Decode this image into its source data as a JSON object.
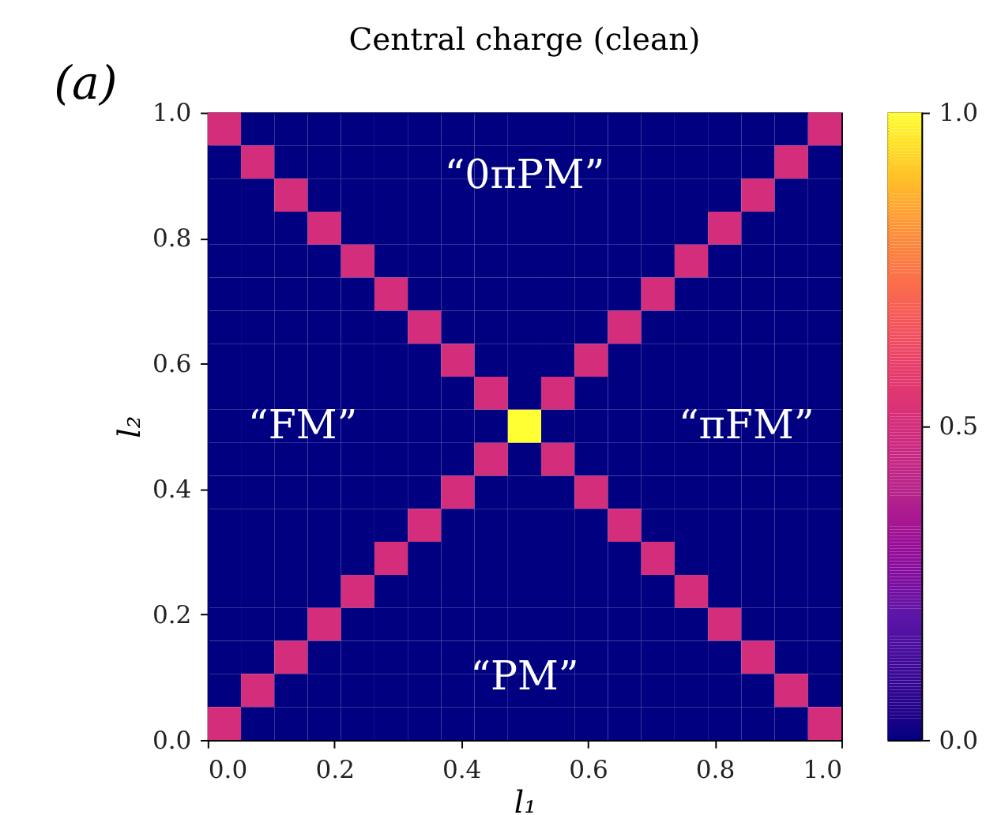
{
  "chart_data": {
    "type": "heatmap",
    "title": "Central charge (clean)",
    "xlabel": "l₁",
    "ylabel": "l₂",
    "x": [
      0.0263,
      0.0789,
      0.1316,
      0.1842,
      0.2368,
      0.2895,
      0.3421,
      0.3947,
      0.4474,
      0.5,
      0.5526,
      0.6053,
      0.6579,
      0.7105,
      0.7632,
      0.8158,
      0.8684,
      0.9211,
      0.9737
    ],
    "y": [
      0.9737,
      0.9211,
      0.8684,
      0.8158,
      0.7632,
      0.7105,
      0.6579,
      0.6053,
      0.5526,
      0.5,
      0.4474,
      0.3947,
      0.3421,
      0.2895,
      0.2368,
      0.1842,
      0.1316,
      0.0789,
      0.0263
    ],
    "cells": [
      [
        0.5,
        0,
        0,
        0,
        0,
        0,
        0,
        0,
        0,
        0,
        0,
        0,
        0,
        0,
        0,
        0,
        0,
        0,
        0.5
      ],
      [
        0,
        0.5,
        0,
        0,
        0,
        0,
        0,
        0,
        0,
        0,
        0,
        0,
        0,
        0,
        0,
        0,
        0,
        0.5,
        0
      ],
      [
        0,
        0,
        0.5,
        0,
        0,
        0,
        0,
        0,
        0,
        0,
        0,
        0,
        0,
        0,
        0,
        0,
        0.5,
        0,
        0
      ],
      [
        0,
        0,
        0,
        0.5,
        0,
        0,
        0,
        0,
        0,
        0,
        0,
        0,
        0,
        0,
        0,
        0.5,
        0,
        0,
        0
      ],
      [
        0,
        0,
        0,
        0,
        0.5,
        0,
        0,
        0,
        0,
        0,
        0,
        0,
        0,
        0,
        0.5,
        0,
        0,
        0,
        0
      ],
      [
        0,
        0,
        0,
        0,
        0,
        0.5,
        0,
        0,
        0,
        0,
        0,
        0,
        0,
        0.5,
        0,
        0,
        0,
        0,
        0
      ],
      [
        0,
        0,
        0,
        0,
        0,
        0,
        0.5,
        0,
        0,
        0,
        0,
        0,
        0.5,
        0,
        0,
        0,
        0,
        0,
        0
      ],
      [
        0,
        0,
        0,
        0,
        0,
        0,
        0,
        0.5,
        0,
        0,
        0,
        0.5,
        0,
        0,
        0,
        0,
        0,
        0,
        0
      ],
      [
        0,
        0,
        0,
        0,
        0,
        0,
        0,
        0,
        0.5,
        0,
        0.5,
        0,
        0,
        0,
        0,
        0,
        0,
        0,
        0
      ],
      [
        0,
        0,
        0,
        0,
        0,
        0,
        0,
        0,
        0,
        1.0,
        0,
        0,
        0,
        0,
        0,
        0,
        0,
        0,
        0
      ],
      [
        0,
        0,
        0,
        0,
        0,
        0,
        0,
        0,
        0.5,
        0,
        0.5,
        0,
        0,
        0,
        0,
        0,
        0,
        0,
        0
      ],
      [
        0,
        0,
        0,
        0,
        0,
        0,
        0,
        0.5,
        0,
        0,
        0,
        0.5,
        0,
        0,
        0,
        0,
        0,
        0,
        0
      ],
      [
        0,
        0,
        0,
        0,
        0,
        0,
        0.5,
        0,
        0,
        0,
        0,
        0,
        0.5,
        0,
        0,
        0,
        0,
        0,
        0
      ],
      [
        0,
        0,
        0,
        0,
        0,
        0.5,
        0,
        0,
        0,
        0,
        0,
        0,
        0,
        0.5,
        0,
        0,
        0,
        0,
        0
      ],
      [
        0,
        0,
        0,
        0,
        0.5,
        0,
        0,
        0,
        0,
        0,
        0,
        0,
        0,
        0,
        0.5,
        0,
        0,
        0,
        0
      ],
      [
        0,
        0,
        0,
        0.5,
        0,
        0,
        0,
        0,
        0,
        0,
        0,
        0,
        0,
        0,
        0,
        0.5,
        0,
        0,
        0
      ],
      [
        0,
        0,
        0.5,
        0,
        0,
        0,
        0,
        0,
        0,
        0,
        0,
        0,
        0,
        0,
        0,
        0,
        0.5,
        0,
        0
      ],
      [
        0,
        0.5,
        0,
        0,
        0,
        0,
        0,
        0,
        0,
        0,
        0,
        0,
        0,
        0,
        0,
        0,
        0,
        0.5,
        0
      ],
      [
        0.5,
        0,
        0,
        0,
        0,
        0,
        0,
        0,
        0,
        0,
        0,
        0,
        0,
        0,
        0,
        0,
        0,
        0,
        0.5
      ]
    ],
    "xlim": [
      0,
      1
    ],
    "ylim": [
      0,
      1
    ],
    "xticks": [
      {
        "value": 0,
        "label": "0.0"
      },
      0.2,
      0.4,
      0.6,
      0.8,
      {
        "value": 1,
        "label": "1.0"
      }
    ],
    "yticks": [
      {
        "value": 0,
        "label": "0.0"
      },
      0.2,
      0.4,
      0.6,
      0.8,
      {
        "value": 1,
        "label": "1.0"
      }
    ],
    "grid": false,
    "clim": [
      0,
      1
    ],
    "cticks": [
      {
        "value": 0,
        "label": "0.0"
      },
      0.5,
      {
        "value": 1,
        "label": "1.0"
      }
    ],
    "annotations": [
      "(a)",
      "“0πPM”",
      "“FM”",
      "“πFM”",
      "“PM”"
    ]
  }
}
